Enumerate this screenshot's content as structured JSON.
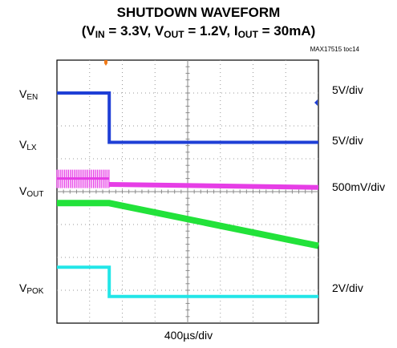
{
  "title": {
    "line1": "SHUTDOWN WAVEFORM",
    "open": "(V",
    "vin_sub": "IN",
    "vin_val": " = 3.3V, V",
    "vout_sub": "OUT",
    "vout_val": " = 1.2V, I",
    "iout_sub": "OUT",
    "iout_val": " = 30mA)"
  },
  "part_tag": "MAX17515 toc14",
  "channels": [
    {
      "main": "V",
      "sub": "EN",
      "scale": "5V/div",
      "color": "#1f3fd6"
    },
    {
      "main": "V",
      "sub": "LX",
      "scale": "5V/div",
      "color": "#e63ee6"
    },
    {
      "main": "V",
      "sub": "OUT",
      "scale": "500mV/div",
      "color": "#22e23a"
    },
    {
      "main": "V",
      "sub": "POK",
      "scale": "2V/div",
      "color": "#22e6e8"
    }
  ],
  "timebase": "400µs/div",
  "chart_data": {
    "type": "line",
    "title": "SHUTDOWN WAVEFORM",
    "subtitle": "(VIN = 3.3V, VOUT = 1.2V, IOUT = 30mA)",
    "x_divisions": 8,
    "y_divisions": 8,
    "x_unit_per_div": "400µs/div",
    "grid": true,
    "series": [
      {
        "name": "VEN",
        "scale": "5V/div",
        "color": "#1f3fd6",
        "points": [
          [
            0,
            7.0
          ],
          [
            1.6,
            7.0
          ],
          [
            1.6,
            5.5
          ],
          [
            8,
            5.5
          ]
        ]
      },
      {
        "name": "VLX",
        "scale": "5V/div",
        "color": "#e63ee6",
        "switching_until_div": 1.6,
        "points": [
          [
            0,
            4.4
          ],
          [
            1.6,
            4.4
          ],
          [
            1.6,
            4.22
          ],
          [
            8,
            4.13
          ]
        ]
      },
      {
        "name": "VOUT",
        "scale": "500mV/div",
        "color": "#22e23a",
        "points": [
          [
            0,
            3.65
          ],
          [
            1.6,
            3.65
          ],
          [
            8,
            2.35
          ]
        ]
      },
      {
        "name": "VPOK",
        "scale": "2V/div",
        "color": "#22e6e8",
        "points": [
          [
            0,
            1.7
          ],
          [
            1.6,
            1.7
          ],
          [
            1.6,
            0.81
          ],
          [
            8,
            0.81
          ]
        ]
      }
    ]
  }
}
